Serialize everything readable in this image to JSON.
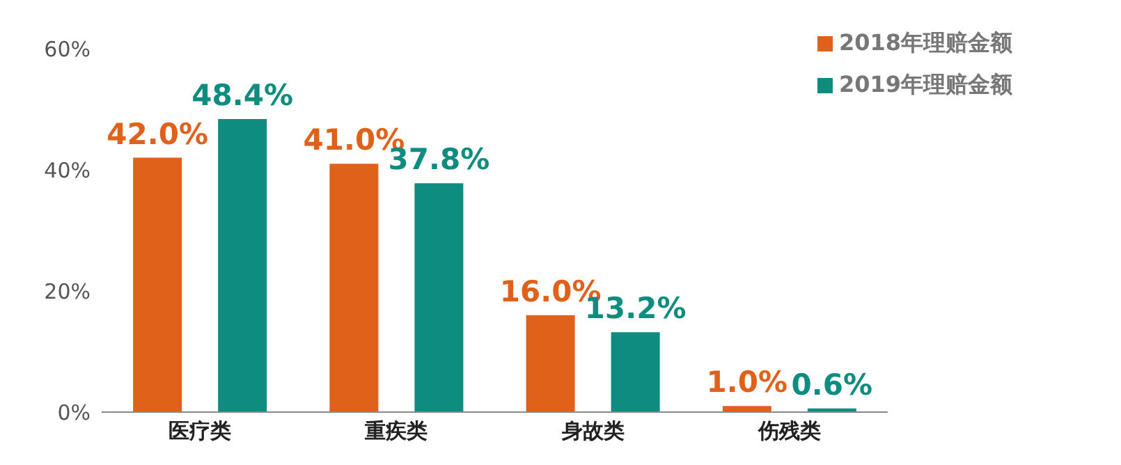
{
  "chart_data": {
    "type": "bar",
    "categories": [
      "医疗类",
      "重疾类",
      "身故类",
      "伤残类"
    ],
    "series": [
      {
        "name": "2018年理赔金额",
        "color": "#e0611a",
        "values": [
          42.0,
          41.0,
          16.0,
          1.0
        ],
        "value_labels": [
          "42.0%",
          "41.0%",
          "16.0%",
          "1.0%"
        ]
      },
      {
        "name": "2019年理赔金额",
        "color": "#0f8c80",
        "values": [
          48.4,
          37.8,
          13.2,
          0.6
        ],
        "value_labels": [
          "48.4%",
          "37.8%",
          "13.2%",
          "0.6%"
        ]
      }
    ],
    "ylim": [
      0,
      60
    ],
    "yticks": [
      {
        "value": 0,
        "label": "0%"
      },
      {
        "value": 20,
        "label": "20%"
      },
      {
        "value": 40,
        "label": "40%"
      },
      {
        "value": 60,
        "label": "60%"
      }
    ],
    "legend": "top right"
  }
}
